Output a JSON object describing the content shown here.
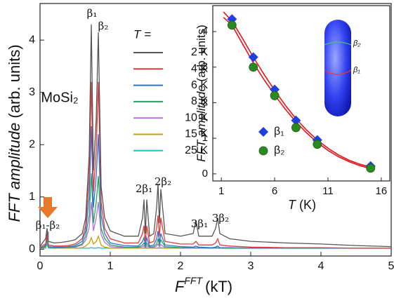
{
  "chart_data": [
    {
      "type": "line",
      "xlabel": {
        "symbol": "F",
        "superscript": "FFT",
        "unit": "(kT)"
      },
      "ylabel": {
        "text": "FFT amplitude",
        "unit": "(arb. units)"
      },
      "legend_title": "T =",
      "annotations": [
        "MoSi₂",
        "β₁",
        "β₂",
        "2β₁",
        "2β₂",
        "3β₁",
        "3β₂",
        "β₁-β₂"
      ],
      "x": [
        0,
        0.05,
        0.08,
        0.1,
        0.12,
        0.2,
        0.3,
        0.4,
        0.5,
        0.6,
        0.65,
        0.7,
        0.73,
        0.76,
        0.8,
        0.83,
        0.87,
        0.92,
        1.0,
        1.2,
        1.4,
        1.46,
        1.48,
        1.5,
        1.52,
        1.56,
        1.62,
        1.66,
        1.68,
        1.7,
        1.72,
        1.78,
        2.0,
        2.18,
        2.22,
        2.26,
        2.45,
        2.5,
        2.53,
        2.56,
        2.7,
        3.0,
        3.5,
        4.0,
        4.5,
        5.0
      ],
      "series": [
        {
          "name": "2 K",
          "color": "#555555",
          "values": [
            0.05,
            0.15,
            0.2,
            0.4,
            0.15,
            0.12,
            0.13,
            0.15,
            0.18,
            0.3,
            0.6,
            1.8,
            4.3,
            1.5,
            2.5,
            4.15,
            1.2,
            0.6,
            0.35,
            0.25,
            0.25,
            0.6,
            0.95,
            0.3,
            0.95,
            0.25,
            0.3,
            0.8,
            1.25,
            0.5,
            1.15,
            0.3,
            0.25,
            0.3,
            0.55,
            0.25,
            0.25,
            0.4,
            0.6,
            0.3,
            0.2,
            0.15,
            0.12,
            0.1,
            0.07,
            0.05
          ]
        },
        {
          "name": "4 K",
          "color": "#e23a3a",
          "values": [
            0.03,
            0.08,
            0.1,
            0.3,
            0.08,
            0.06,
            0.06,
            0.07,
            0.1,
            0.2,
            0.45,
            1.4,
            3.2,
            1.1,
            1.9,
            3.2,
            0.9,
            0.4,
            0.2,
            0.12,
            0.12,
            0.3,
            0.45,
            0.15,
            0.45,
            0.12,
            0.15,
            0.4,
            0.65,
            0.25,
            0.6,
            0.15,
            0.1,
            0.1,
            0.15,
            0.08,
            0.08,
            0.12,
            0.2,
            0.08,
            0.06,
            0.04,
            0.03,
            0.03,
            0.02,
            0.02
          ]
        },
        {
          "name": "6 K",
          "color": "#2f6fd8",
          "values": [
            0.02,
            0.05,
            0.08,
            0.25,
            0.05,
            0.04,
            0.04,
            0.05,
            0.07,
            0.15,
            0.35,
            1.0,
            2.35,
            0.8,
            1.4,
            2.2,
            0.65,
            0.3,
            0.12,
            0.07,
            0.06,
            0.15,
            0.22,
            0.08,
            0.22,
            0.06,
            0.08,
            0.2,
            0.35,
            0.12,
            0.3,
            0.08,
            0.05,
            0.04,
            0.06,
            0.04,
            0.03,
            0.04,
            0.06,
            0.03,
            0.03,
            0.02,
            0.02,
            0.02,
            0.02,
            0.02
          ]
        },
        {
          "name": "8 K",
          "color": "#2aa060",
          "values": [
            0.02,
            0.04,
            0.06,
            0.2,
            0.04,
            0.03,
            0.03,
            0.04,
            0.05,
            0.1,
            0.25,
            0.65,
            1.45,
            0.5,
            0.9,
            1.4,
            0.4,
            0.2,
            0.08,
            0.04,
            0.04,
            0.08,
            0.12,
            0.05,
            0.12,
            0.04,
            0.05,
            0.1,
            0.2,
            0.07,
            0.18,
            0.05,
            0.03,
            0.03,
            0.03,
            0.03,
            0.02,
            0.03,
            0.03,
            0.02,
            0.02,
            0.02,
            0.02,
            0.02,
            0.02,
            0.02
          ]
        },
        {
          "name": "10 K",
          "color": "#b070e0",
          "values": [
            0.02,
            0.04,
            0.05,
            0.18,
            0.04,
            0.03,
            0.03,
            0.03,
            0.04,
            0.08,
            0.17,
            0.42,
            0.9,
            0.35,
            0.6,
            0.9,
            0.28,
            0.13,
            0.05,
            0.03,
            0.03,
            0.05,
            0.07,
            0.03,
            0.07,
            0.03,
            0.03,
            0.06,
            0.1,
            0.04,
            0.09,
            0.03,
            0.02,
            0.02,
            0.02,
            0.02,
            0.02,
            0.02,
            0.02,
            0.02,
            0.02,
            0.02,
            0.02,
            0.02,
            0.02,
            0.02
          ]
        },
        {
          "name": "15 K",
          "color": "#c8a000",
          "values": [
            0.02,
            0.03,
            0.04,
            0.35,
            0.04,
            0.02,
            0.02,
            0.02,
            0.02,
            0.03,
            0.06,
            0.12,
            0.22,
            0.1,
            0.15,
            0.25,
            0.08,
            0.04,
            0.02,
            0.02,
            0.02,
            0.02,
            0.03,
            0.02,
            0.03,
            0.02,
            0.02,
            0.02,
            0.03,
            0.02,
            0.03,
            0.02,
            0.02,
            0.02,
            0.02,
            0.02,
            0.02,
            0.02,
            0.02,
            0.02,
            0.02,
            0.02,
            0.02,
            0.02,
            0.02,
            0.02
          ]
        },
        {
          "name": "25 K",
          "color": "#20c0c8",
          "values": [
            0.02,
            0.02,
            0.02,
            0.1,
            0.02,
            0.02,
            0.02,
            0.02,
            0.02,
            0.02,
            0.02,
            0.02,
            0.03,
            0.02,
            0.02,
            0.03,
            0.02,
            0.02,
            0.02,
            0.02,
            0.02,
            0.02,
            0.02,
            0.02,
            0.02,
            0.02,
            0.02,
            0.02,
            0.02,
            0.02,
            0.02,
            0.02,
            0.02,
            0.02,
            0.02,
            0.02,
            0.02,
            0.02,
            0.02,
            0.02,
            0.02,
            0.02,
            0.02,
            0.02,
            0.02,
            0.02
          ]
        }
      ],
      "xlim": [
        0,
        5
      ],
      "xticks": [
        0,
        1,
        2,
        3,
        4,
        5
      ],
      "ylim": [
        -0.13,
        4.7
      ],
      "yticks": [
        0,
        1,
        2,
        3,
        4
      ]
    },
    {
      "type": "scatter",
      "xlabel": {
        "symbol": "T",
        "unit": "(K)"
      },
      "ylabel": {
        "text": "FFT amplitude",
        "unit": "(arb. units)"
      },
      "fs_labels": [
        "β₂",
        "β₁"
      ],
      "x": [
        2,
        4,
        6,
        8,
        10,
        15
      ],
      "series": [
        {
          "name": "β₁",
          "color": "#1f3fe0",
          "marker": "diamond",
          "values": [
            4.35,
            3.28,
            2.37,
            1.5,
            0.95,
            0.22
          ]
        },
        {
          "name": "β₂",
          "color": "#2a8a20",
          "marker": "circle",
          "values": [
            4.18,
            3.0,
            2.2,
            1.3,
            0.83,
            0.16
          ]
        }
      ],
      "fits": {
        "x": [
          1.2,
          2,
          3,
          4,
          5,
          6,
          7,
          8,
          9,
          10,
          11,
          12,
          13,
          14,
          15
        ],
        "color": "#e8141c",
        "series": [
          {
            "values": [
              4.55,
              4.3,
              3.8,
              3.28,
              2.8,
              2.35,
              1.93,
              1.55,
              1.23,
              0.95,
              0.72,
              0.53,
              0.38,
              0.27,
              0.19
            ]
          },
          {
            "values": [
              4.4,
              4.18,
              3.65,
              3.12,
              2.65,
              2.22,
              1.82,
              1.46,
              1.15,
              0.88,
              0.66,
              0.48,
              0.34,
              0.23,
              0.15
            ]
          }
        ]
      },
      "xlim": [
        0.2,
        16.8
      ],
      "xticks": [
        1,
        6,
        11,
        16
      ],
      "ylim": [
        -0.2,
        4.73
      ],
      "yticks": [
        0,
        1,
        2,
        3,
        4
      ]
    }
  ]
}
